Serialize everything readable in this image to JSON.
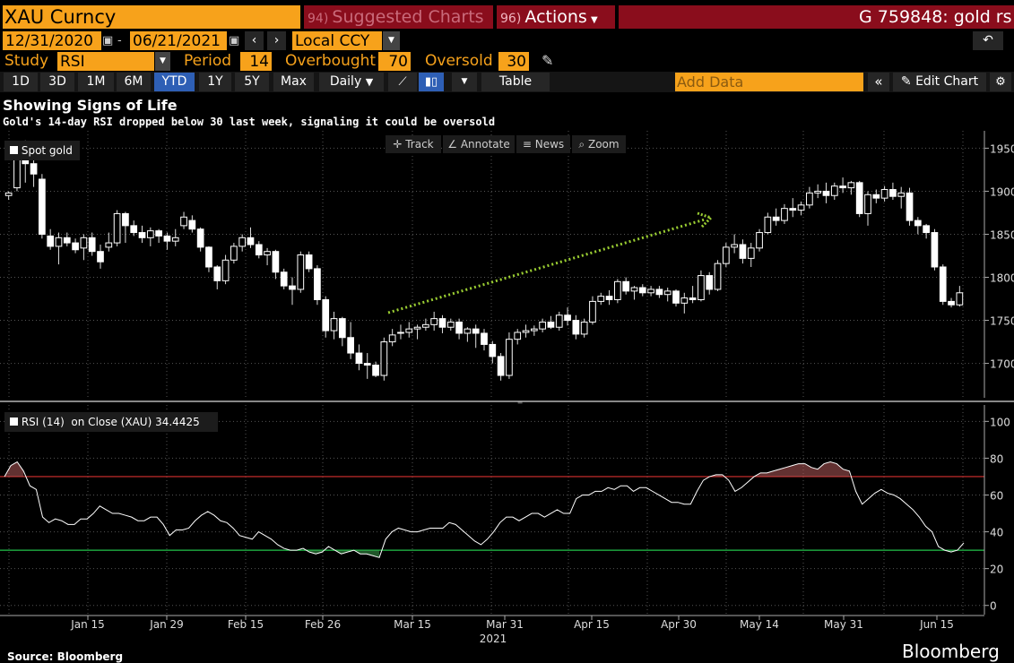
{
  "header": {
    "ticker": "XAU Curncy",
    "suggested_num": "94)",
    "suggested_label": "Suggested Charts",
    "actions_num": "96)",
    "actions_label": "Actions",
    "right_text": "G 759848: gold rs"
  },
  "dates": {
    "start": "12/31/2020",
    "end": "06/21/2021",
    "currency": "Local CCY"
  },
  "study": {
    "label": "Study",
    "value": "RSI",
    "period_label": "Period",
    "period": "14",
    "overbought_label": "Overbought",
    "overbought": "70",
    "oversold_label": "Oversold",
    "oversold": "30"
  },
  "range_buttons": [
    "1D",
    "3D",
    "1M",
    "6M",
    "YTD",
    "1Y",
    "5Y",
    "Max"
  ],
  "active_range": "YTD",
  "toolbar": {
    "frequency": "Daily",
    "table": "Table",
    "add_data": "Add Data",
    "edit_chart": "Edit Chart"
  },
  "title": "Showing Signs of Life",
  "subtitle": "Gold's 14-day RSI dropped below 30 last week, signaling it could be oversold",
  "chart_tools": [
    "Track",
    "Annotate",
    "News",
    "Zoom"
  ],
  "footer": {
    "source": "Source: Bloomberg",
    "brand": "Bloomberg"
  },
  "colors": {
    "orange": "#f7a21b",
    "overbought_line": "#d6302f",
    "oversold_line": "#22c24b",
    "arrow": "#9acd32"
  },
  "chart_data": [
    {
      "type": "candlestick",
      "legend": "Spot gold",
      "ylim": [
        1660,
        1965
      ],
      "yticks": [
        1700,
        1750,
        1800,
        1850,
        1900,
        1950
      ],
      "annotation": "dotted upward arrow (Mar 8 to May 5)",
      "x_labels": [
        "Jan 15",
        "Jan 29",
        "Feb 15",
        "Feb 26",
        "Mar 15",
        "Mar 31",
        "Apr 15",
        "Apr 30",
        "May 14",
        "May 31",
        "Jun 15"
      ],
      "year_label": "2021",
      "ohlc": [
        [
          1895,
          1900,
          1890,
          1898
        ],
        [
          1904,
          1952,
          1900,
          1948
        ],
        [
          1948,
          1959,
          1910,
          1932
        ],
        [
          1932,
          1945,
          1905,
          1920
        ],
        [
          1914,
          1920,
          1845,
          1850
        ],
        [
          1848,
          1856,
          1832,
          1836
        ],
        [
          1836,
          1852,
          1815,
          1846
        ],
        [
          1846,
          1852,
          1836,
          1840
        ],
        [
          1840,
          1845,
          1828,
          1832
        ],
        [
          1834,
          1850,
          1820,
          1846
        ],
        [
          1846,
          1852,
          1825,
          1830
        ],
        [
          1830,
          1838,
          1810,
          1818
        ],
        [
          1835,
          1852,
          1830,
          1840
        ],
        [
          1840,
          1878,
          1836,
          1874
        ],
        [
          1874,
          1876,
          1840,
          1860
        ],
        [
          1860,
          1866,
          1848,
          1852
        ],
        [
          1852,
          1860,
          1840,
          1846
        ],
        [
          1846,
          1858,
          1836,
          1854
        ],
        [
          1854,
          1856,
          1840,
          1848
        ],
        [
          1848,
          1852,
          1832,
          1842
        ],
        [
          1842,
          1856,
          1836,
          1846
        ],
        [
          1860,
          1876,
          1856,
          1870
        ],
        [
          1866,
          1872,
          1852,
          1856
        ],
        [
          1856,
          1858,
          1830,
          1835
        ],
        [
          1835,
          1836,
          1806,
          1812
        ],
        [
          1812,
          1814,
          1786,
          1796
        ],
        [
          1796,
          1826,
          1792,
          1820
        ],
        [
          1820,
          1840,
          1816,
          1836
        ],
        [
          1836,
          1850,
          1830,
          1846
        ],
        [
          1846,
          1858,
          1834,
          1838
        ],
        [
          1838,
          1842,
          1822,
          1826
        ],
        [
          1826,
          1834,
          1814,
          1830
        ],
        [
          1830,
          1832,
          1798,
          1806
        ],
        [
          1806,
          1810,
          1786,
          1790
        ],
        [
          1790,
          1800,
          1768,
          1786
        ],
        [
          1786,
          1830,
          1782,
          1826
        ],
        [
          1826,
          1830,
          1806,
          1810
        ],
        [
          1810,
          1814,
          1768,
          1774
        ],
        [
          1774,
          1778,
          1730,
          1738
        ],
        [
          1738,
          1760,
          1728,
          1752
        ],
        [
          1752,
          1754,
          1720,
          1730
        ],
        [
          1730,
          1748,
          1705,
          1712
        ],
        [
          1712,
          1722,
          1692,
          1700
        ],
        [
          1700,
          1712,
          1682,
          1698
        ],
        [
          1698,
          1702,
          1684,
          1686
        ],
        [
          1686,
          1730,
          1680,
          1725
        ],
        [
          1725,
          1740,
          1720,
          1733
        ],
        [
          1735,
          1745,
          1728,
          1736
        ],
        [
          1736,
          1748,
          1730,
          1740
        ],
        [
          1740,
          1745,
          1728,
          1742
        ],
        [
          1742,
          1752,
          1738,
          1745
        ],
        [
          1745,
          1760,
          1738,
          1752
        ],
        [
          1752,
          1756,
          1735,
          1742
        ],
        [
          1742,
          1752,
          1738,
          1748
        ],
        [
          1748,
          1752,
          1728,
          1735
        ],
        [
          1735,
          1742,
          1725,
          1740
        ],
        [
          1740,
          1745,
          1718,
          1735
        ],
        [
          1735,
          1740,
          1715,
          1722
        ],
        [
          1722,
          1726,
          1700,
          1708
        ],
        [
          1708,
          1712,
          1680,
          1686
        ],
        [
          1686,
          1736,
          1682,
          1728
        ],
        [
          1728,
          1740,
          1722,
          1736
        ],
        [
          1736,
          1745,
          1730,
          1738
        ],
        [
          1738,
          1744,
          1732,
          1740
        ],
        [
          1740,
          1752,
          1736,
          1748
        ],
        [
          1748,
          1755,
          1740,
          1742
        ],
        [
          1742,
          1760,
          1738,
          1756
        ],
        [
          1756,
          1765,
          1744,
          1750
        ],
        [
          1750,
          1756,
          1728,
          1734
        ],
        [
          1734,
          1752,
          1730,
          1748
        ],
        [
          1748,
          1778,
          1745,
          1772
        ],
        [
          1772,
          1782,
          1768,
          1778
        ],
        [
          1778,
          1785,
          1768,
          1774
        ],
        [
          1774,
          1798,
          1770,
          1795
        ],
        [
          1795,
          1800,
          1780,
          1784
        ],
        [
          1784,
          1790,
          1774,
          1788
        ],
        [
          1788,
          1792,
          1778,
          1782
        ],
        [
          1782,
          1790,
          1778,
          1786
        ],
        [
          1786,
          1790,
          1776,
          1780
        ],
        [
          1780,
          1788,
          1772,
          1784
        ],
        [
          1784,
          1786,
          1766,
          1770
        ],
        [
          1770,
          1782,
          1758,
          1776
        ],
        [
          1776,
          1790,
          1770,
          1774
        ],
        [
          1774,
          1808,
          1772,
          1802
        ],
        [
          1802,
          1806,
          1780,
          1786
        ],
        [
          1786,
          1820,
          1784,
          1816
        ],
        [
          1816,
          1840,
          1812,
          1835
        ],
        [
          1835,
          1850,
          1828,
          1838
        ],
        [
          1838,
          1844,
          1816,
          1822
        ],
        [
          1822,
          1840,
          1812,
          1834
        ],
        [
          1834,
          1856,
          1830,
          1852
        ],
        [
          1852,
          1875,
          1850,
          1870
        ],
        [
          1870,
          1880,
          1860,
          1866
        ],
        [
          1866,
          1885,
          1862,
          1880
        ],
        [
          1880,
          1892,
          1870,
          1878
        ],
        [
          1878,
          1888,
          1872,
          1884
        ],
        [
          1884,
          1905,
          1880,
          1898
        ],
        [
          1898,
          1908,
          1892,
          1900
        ],
        [
          1900,
          1910,
          1886,
          1895
        ],
        [
          1895,
          1910,
          1890,
          1906
        ],
        [
          1906,
          1916,
          1898,
          1904
        ],
        [
          1904,
          1912,
          1896,
          1910
        ],
        [
          1910,
          1912,
          1870,
          1874
        ],
        [
          1874,
          1900,
          1860,
          1896
        ],
        [
          1896,
          1902,
          1886,
          1892
        ],
        [
          1892,
          1906,
          1888,
          1902
        ],
        [
          1902,
          1910,
          1890,
          1894
        ],
        [
          1894,
          1905,
          1880,
          1898
        ],
        [
          1898,
          1904,
          1860,
          1866
        ],
        [
          1866,
          1870,
          1850,
          1860
        ],
        [
          1860,
          1862,
          1845,
          1852
        ],
        [
          1852,
          1856,
          1808,
          1812
        ],
        [
          1812,
          1815,
          1768,
          1772
        ],
        [
          1772,
          1776,
          1765,
          1768
        ],
        [
          1768,
          1790,
          1766,
          1782
        ]
      ]
    },
    {
      "type": "line",
      "legend": "RSI (14)",
      "legend_detail": "on Close (XAU)",
      "last_value": "34.4425",
      "ylim": [
        -5,
        106
      ],
      "yticks": [
        0,
        20,
        40,
        60,
        80,
        100
      ],
      "overbought": 70,
      "oversold": 30,
      "values": [
        70,
        76,
        78,
        73,
        65,
        63,
        48,
        45,
        47,
        46,
        44,
        44,
        47,
        47,
        50,
        54,
        52,
        50,
        50,
        49,
        48,
        46,
        46,
        48,
        48,
        44,
        38,
        41,
        41,
        42,
        46,
        49,
        51,
        49,
        46,
        45,
        42,
        38,
        37,
        36,
        40,
        38,
        36,
        33,
        31,
        30,
        30,
        31,
        29,
        28,
        29,
        32,
        30,
        28,
        29,
        30,
        28,
        28,
        27,
        26,
        36,
        40,
        42,
        41,
        40,
        40,
        41,
        42,
        42,
        42,
        45,
        44,
        41,
        38,
        35,
        33,
        36,
        40,
        45,
        48,
        48,
        46,
        48,
        50,
        50,
        48,
        50,
        52,
        50,
        50,
        58,
        60,
        60,
        62,
        62,
        64,
        63,
        65,
        65,
        62,
        64,
        64,
        62,
        60,
        58,
        56,
        56,
        55,
        55,
        62,
        68,
        70,
        71,
        71,
        68,
        62,
        64,
        67,
        70,
        72,
        72,
        73,
        74,
        75,
        76,
        77,
        77,
        75,
        74,
        77,
        78,
        77,
        74,
        73,
        62,
        55,
        58,
        61,
        63,
        61,
        60,
        58,
        55,
        52,
        48,
        43,
        40,
        32,
        30,
        29,
        30,
        34
      ]
    }
  ]
}
